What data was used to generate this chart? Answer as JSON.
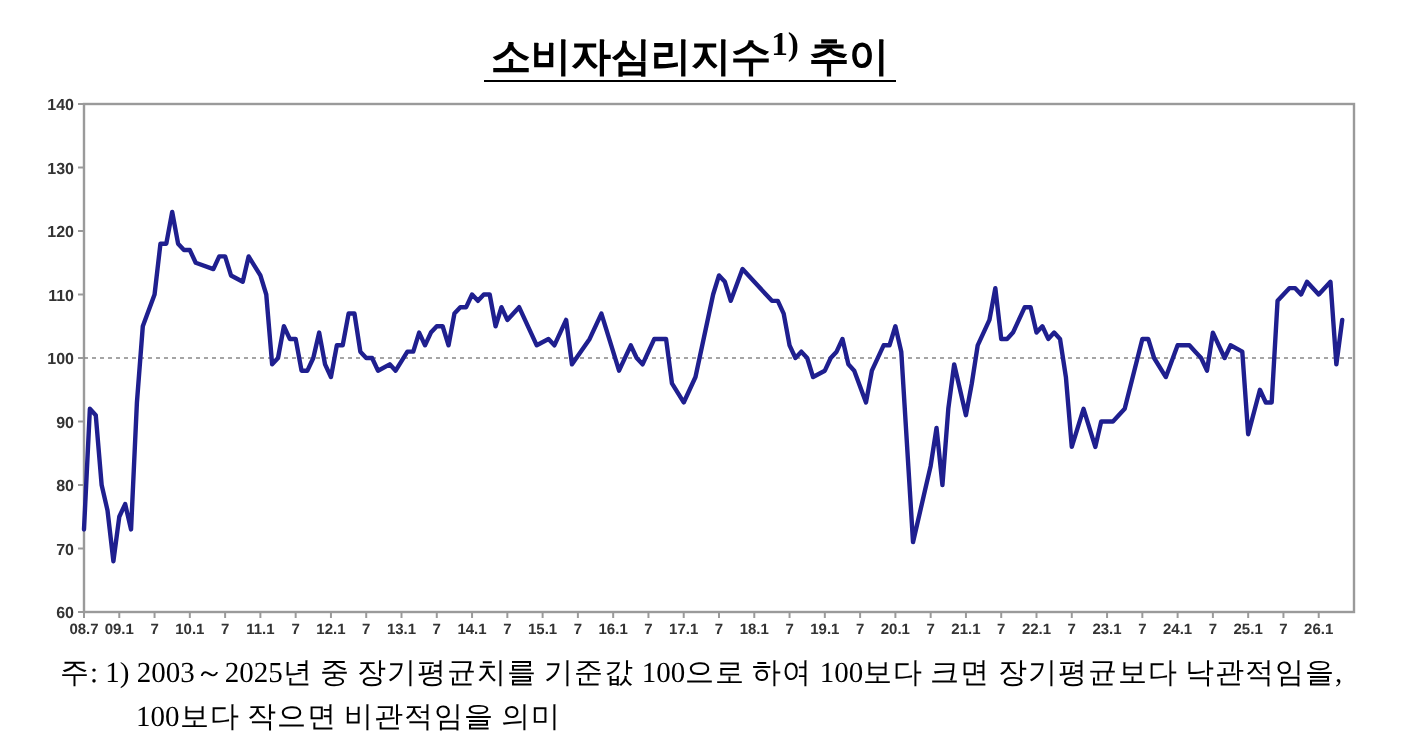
{
  "chart_data": {
    "type": "line",
    "title": "소비자심리지수$^{1)}$ 추이",
    "x": [
      "2008-07",
      "2008-08",
      "2008-09",
      "2008-10",
      "2008-11",
      "2008-12",
      "2009-01",
      "2009-02",
      "2009-03",
      "2009-04",
      "2009-05",
      "2009-07",
      "2009-08",
      "2009-09",
      "2009-10",
      "2009-11",
      "2009-12",
      "2010-01",
      "2010-02",
      "2010-05",
      "2010-06",
      "2010-07",
      "2010-08",
      "2010-10",
      "2010-11",
      "2011-01",
      "2011-02",
      "2011-03",
      "2011-04",
      "2011-05",
      "2011-06",
      "2011-07",
      "2011-08",
      "2011-09",
      "2011-10",
      "2011-11",
      "2011-12",
      "2012-01",
      "2012-02",
      "2012-03",
      "2012-04",
      "2012-05",
      "2012-06",
      "2012-07",
      "2012-08",
      "2012-09",
      "2012-11",
      "2012-12",
      "2013-02",
      "2013-03",
      "2013-04",
      "2013-05",
      "2013-06",
      "2013-07",
      "2013-08",
      "2013-09",
      "2013-10",
      "2013-11",
      "2013-12",
      "2014-01",
      "2014-02",
      "2014-03",
      "2014-04",
      "2014-05",
      "2014-06",
      "2014-07",
      "2014-09",
      "2014-12",
      "2015-02",
      "2015-03",
      "2015-05",
      "2015-06",
      "2015-09",
      "2015-11",
      "2016-02",
      "2016-04",
      "2016-05",
      "2016-06",
      "2016-08",
      "2016-10",
      "2016-11",
      "2017-01",
      "2017-03",
      "2017-06",
      "2017-07",
      "2017-08",
      "2017-09",
      "2017-11",
      "2018-01",
      "2018-03",
      "2018-04",
      "2018-05",
      "2018-06",
      "2018-07",
      "2018-08",
      "2018-09",
      "2018-10",
      "2018-11",
      "2019-01",
      "2019-02",
      "2019-03",
      "2019-04",
      "2019-05",
      "2019-06",
      "2019-08",
      "2019-09",
      "2019-11",
      "2019-12",
      "2020-01",
      "2020-02",
      "2020-04",
      "2020-06",
      "2020-07",
      "2020-08",
      "2020-09",
      "2020-10",
      "2020-11",
      "2021-01",
      "2021-02",
      "2021-03",
      "2021-05",
      "2021-06",
      "2021-07",
      "2021-08",
      "2021-09",
      "2021-11",
      "2021-12",
      "2022-01",
      "2022-02",
      "2022-03",
      "2022-04",
      "2022-05",
      "2022-06",
      "2022-07",
      "2022-09",
      "2022-11",
      "2022-12",
      "2023-01",
      "2023-02",
      "2023-04",
      "2023-07",
      "2023-08",
      "2023-09",
      "2023-11",
      "2024-01",
      "2024-03",
      "2024-04",
      "2024-05",
      "2024-06",
      "2024-07",
      "2024-09",
      "2024-10",
      "2024-12",
      "2025-01",
      "2025-03",
      "2025-04",
      "2025-05",
      "2025-06",
      "2025-08",
      "2025-09",
      "2025-10",
      "2025-11",
      "2026-01",
      "2026-03",
      "2026-04",
      "2026-05"
    ],
    "series": [
      {
        "color": "#1f1f8f",
        "values": [
          73,
          92,
          91,
          80,
          76,
          68,
          75,
          77,
          73,
          93,
          105,
          110,
          118,
          118,
          123,
          118,
          117,
          117,
          115,
          114,
          116,
          116,
          113,
          112,
          116,
          113,
          110,
          99,
          100,
          105,
          103,
          103,
          98,
          98,
          100,
          104,
          99,
          97,
          102,
          102,
          107,
          107,
          101,
          100,
          100,
          98,
          99,
          98,
          101,
          101,
          104,
          102,
          104,
          105,
          105,
          102,
          107,
          108,
          108,
          110,
          109,
          110,
          110,
          105,
          108,
          106,
          108,
          102,
          103,
          102,
          106,
          99,
          103,
          107,
          98,
          102,
          100,
          99,
          103,
          103,
          96,
          93,
          97,
          110,
          113,
          112,
          109,
          114,
          112,
          110,
          109,
          109,
          107,
          102,
          100,
          101,
          100,
          97,
          98,
          100,
          101,
          103,
          99,
          98,
          93,
          98,
          102,
          102,
          105,
          101,
          71,
          79,
          83,
          89,
          80,
          92,
          99,
          91,
          96,
          102,
          106,
          111,
          103,
          103,
          104,
          108,
          108,
          104,
          105,
          103,
          104,
          103,
          97,
          86,
          92,
          86,
          90,
          90,
          90,
          92,
          103,
          103,
          100,
          97,
          102,
          102,
          101,
          100,
          98,
          104,
          100,
          102,
          101,
          88,
          95,
          93,
          93,
          109,
          111,
          111,
          110,
          112,
          110,
          112,
          99,
          106
        ]
      }
    ],
    "xlim": [
      "2008-07",
      "2026-07"
    ],
    "ylim": [
      60,
      140
    ],
    "xticks": [
      {
        "value": "2008-07",
        "label": "08.7"
      },
      {
        "value": "2009-01",
        "label": "09.1"
      },
      {
        "value": "2009-07",
        "label": "7"
      },
      {
        "value": "2010-01",
        "label": "10.1"
      },
      {
        "value": "2010-07",
        "label": "7"
      },
      {
        "value": "2011-01",
        "label": "11.1"
      },
      {
        "value": "2011-07",
        "label": "7"
      },
      {
        "value": "2012-01",
        "label": "12.1"
      },
      {
        "value": "2012-07",
        "label": "7"
      },
      {
        "value": "2013-01",
        "label": "13.1"
      },
      {
        "value": "2013-07",
        "label": "7"
      },
      {
        "value": "2014-01",
        "label": "14.1"
      },
      {
        "value": "2014-07",
        "label": "7"
      },
      {
        "value": "2015-01",
        "label": "15.1"
      },
      {
        "value": "2015-07",
        "label": "7"
      },
      {
        "value": "2016-01",
        "label": "16.1"
      },
      {
        "value": "2016-07",
        "label": "7"
      },
      {
        "value": "2017-01",
        "label": "17.1"
      },
      {
        "value": "2017-07",
        "label": "7"
      },
      {
        "value": "2018-01",
        "label": "18.1"
      },
      {
        "value": "2018-07",
        "label": "7"
      },
      {
        "value": "2019-01",
        "label": "19.1"
      },
      {
        "value": "2019-07",
        "label": "7"
      },
      {
        "value": "2020-01",
        "label": "20.1"
      },
      {
        "value": "2020-07",
        "label": "7"
      },
      {
        "value": "2021-01",
        "label": "21.1"
      },
      {
        "value": "2021-07",
        "label": "7"
      },
      {
        "value": "2022-01",
        "label": "22.1"
      },
      {
        "value": "2022-07",
        "label": "7"
      },
      {
        "value": "2023-01",
        "label": "23.1"
      },
      {
        "value": "2023-07",
        "label": "7"
      },
      {
        "value": "2024-01",
        "label": "24.1"
      },
      {
        "value": "2024-07",
        "label": "7"
      },
      {
        "value": "2025-01",
        "label": "25.1"
      },
      {
        "value": "2025-07",
        "label": "7"
      },
      {
        "value": "2026-01",
        "label": "26.1"
      }
    ],
    "yticks": [
      60,
      70,
      80,
      90,
      100,
      110,
      120,
      130,
      140
    ],
    "ref_lines": [
      {
        "axis": "y",
        "value": 100,
        "color": "#888888",
        "line_style": "dotted"
      }
    ],
    "line_style": "solid",
    "annotations": [
      "주: 1) 2003～2025년 중 장기평균치를 기준값 100으로 하여 100보다 크면 장기평균보다 낙관적임을, 100보다 작으면 비관적임을 의미"
    ]
  }
}
